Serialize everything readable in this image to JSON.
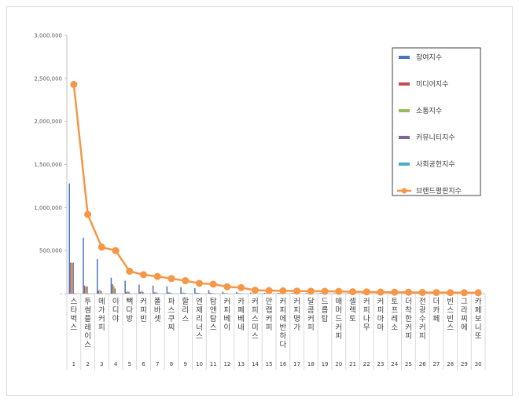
{
  "chart_data": {
    "type": "bar",
    "title": "",
    "xlabel": "",
    "ylabel": "",
    "ylim": [
      0,
      3000000
    ],
    "yticks": [
      0,
      500000,
      1000000,
      1500000,
      2000000,
      2500000,
      3000000
    ],
    "ytick_labels": [
      "-",
      "500,000",
      "1,000,000",
      "1,500,000",
      "2,000,000",
      "2,500,000",
      "3,000,000"
    ],
    "categories": [
      "스타벅스",
      "투썸플레이스",
      "메가커피",
      "이디야",
      "빽다방",
      "커피빈",
      "폴바셋",
      "파스쿠찌",
      "할리스",
      "엔제리너스",
      "탐앤탐스",
      "커피베이",
      "카페베네",
      "커피스미스",
      "만랩커피",
      "커피에반하다",
      "커피명가",
      "달콤커피",
      "드롭탑",
      "매머드커피",
      "셀렉토",
      "커피나무",
      "커피마마",
      "토프레소",
      "더착한커피",
      "전광수커피",
      "더카페",
      "빈스빈스",
      "그라찌에",
      "카페보니또"
    ],
    "ranks": [
      "1",
      "2",
      "3",
      "4",
      "5",
      "6",
      "7",
      "8",
      "9",
      "10",
      "11",
      "12",
      "13",
      "14",
      "15",
      "16",
      "17",
      "18",
      "19",
      "20",
      "21",
      "22",
      "23",
      "24",
      "25",
      "26",
      "27",
      "28",
      "29",
      "30"
    ],
    "legend_position": "right",
    "series": [
      {
        "name": "참여지수",
        "kind": "bar",
        "color": "#4472c4",
        "values": [
          1280000,
          650000,
          400000,
          185000,
          150000,
          105000,
          95000,
          85000,
          75000,
          65000,
          40000,
          22000,
          20000,
          12000,
          10000,
          9000,
          8000,
          7000,
          6000,
          5500,
          5000,
          4500,
          4000,
          3500,
          3000,
          2500,
          2000,
          2000,
          1500,
          1500
        ]
      },
      {
        "name": "미디어지수",
        "kind": "bar",
        "color": "#c0504d",
        "values": [
          360000,
          95000,
          35000,
          110000,
          18000,
          20000,
          15000,
          15000,
          10000,
          10000,
          10000,
          7000,
          6000,
          3000,
          4000,
          3000,
          2000,
          2000,
          2000,
          1500,
          1000,
          1000,
          1000,
          800,
          700,
          600,
          500,
          500,
          400,
          400
        ]
      },
      {
        "name": "소통지수",
        "kind": "bar",
        "color": "#9bbb59",
        "values": [
          360000,
          80000,
          45000,
          90000,
          28000,
          32000,
          20000,
          18000,
          15000,
          12000,
          9000,
          6000,
          5000,
          4000,
          3500,
          3000,
          3000,
          2500,
          2000,
          1800,
          1500,
          1400,
          1300,
          1200,
          1000,
          900,
          800,
          700,
          600,
          500
        ]
      },
      {
        "name": "커뮤니티지수",
        "kind": "bar",
        "color": "#8064a2",
        "values": [
          360000,
          85000,
          30000,
          60000,
          20000,
          20000,
          12000,
          10000,
          8000,
          8000,
          6000,
          5000,
          5000,
          3000,
          3000,
          2500,
          2000,
          2000,
          1500,
          1400,
          1200,
          1000,
          900,
          800,
          700,
          600,
          500,
          400,
          400,
          300
        ]
      },
      {
        "name": "사회공헌지수",
        "kind": "bar",
        "color": "#4bacc6",
        "values": [
          8000,
          5000,
          4000,
          3000,
          2000,
          2000,
          1500,
          1500,
          1200,
          1000,
          800,
          700,
          600,
          500,
          500,
          400,
          400,
          300,
          300,
          300,
          200,
          200,
          200,
          200,
          200,
          100,
          100,
          100,
          100,
          100
        ]
      },
      {
        "name": "브랜드평판지수",
        "kind": "line",
        "color": "#f79646",
        "values": [
          2430000,
          920000,
          540000,
          500000,
          260000,
          220000,
          200000,
          175000,
          150000,
          120000,
          110000,
          80000,
          70000,
          40000,
          35000,
          33000,
          30000,
          28000,
          27000,
          26000,
          22000,
          20000,
          18000,
          17000,
          16000,
          14000,
          13000,
          12000,
          11000,
          10000
        ]
      }
    ]
  }
}
